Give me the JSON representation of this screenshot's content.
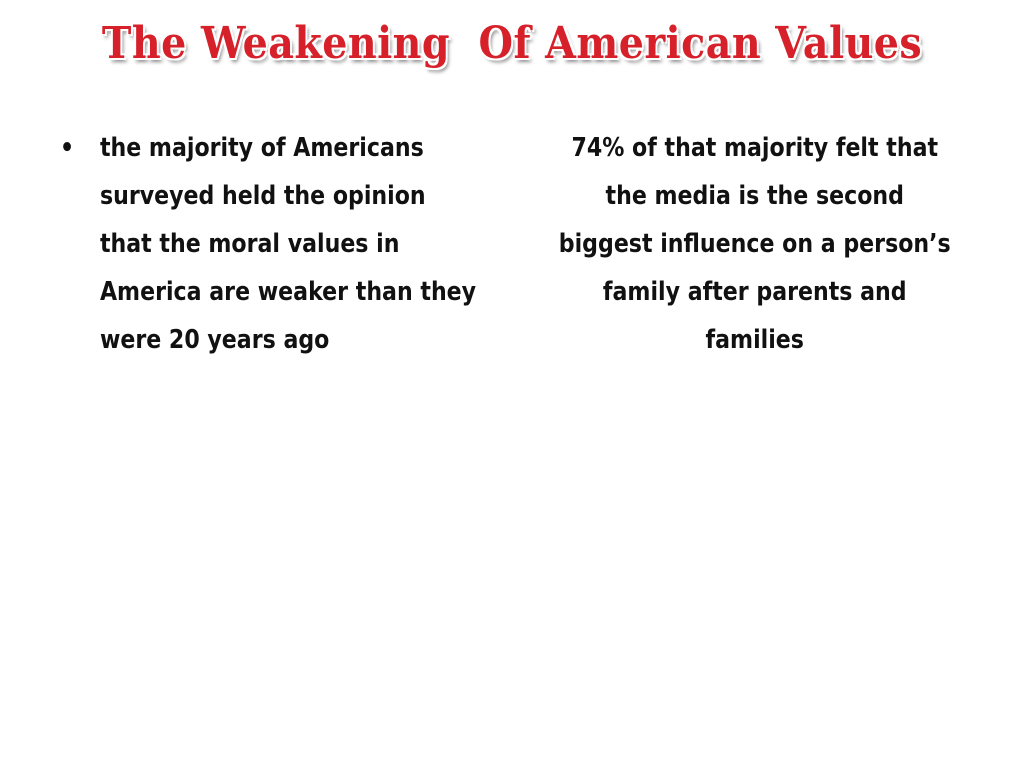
{
  "title": "The Weakening  Of American Values",
  "left_column": {
    "bullet": "•",
    "text": "the majority of Americans surveyed held the opinion that the moral values in America are weaker than they were 20 years ago"
  },
  "right_column": {
    "text": "74% of that majority felt that the media is the second biggest influence on a person’s family after parents and families"
  }
}
